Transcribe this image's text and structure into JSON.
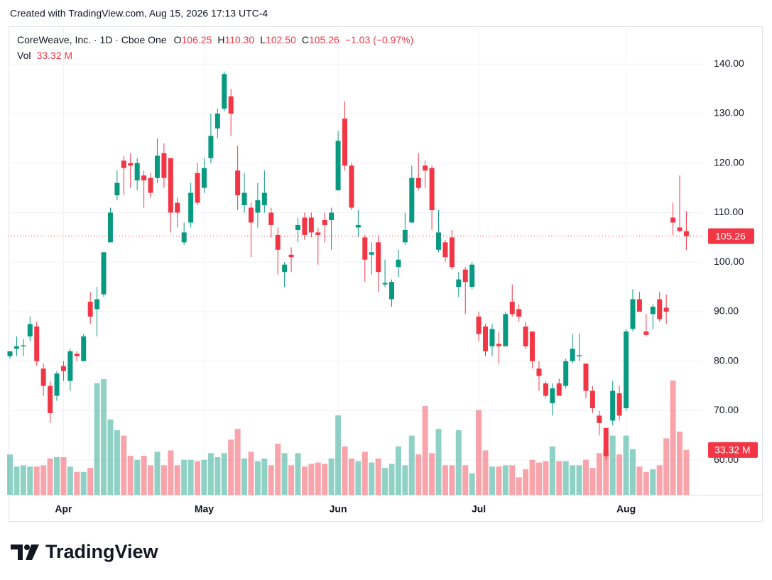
{
  "created": "Created with TradingView.com, Aug 15, 2026 17:13 UTC-4",
  "brand": "TradingView",
  "chart_data": {
    "type": "candlestick",
    "legend": {
      "symbol": "CoreWeave, Inc. · 1D · Cboe One",
      "o_label": "O",
      "o": "106.25",
      "h_label": "H",
      "h": "110.30",
      "l_label": "L",
      "l": "102.50",
      "c_label": "C",
      "c": "105.26",
      "change": "−1.03 (−0.97%)",
      "vol_label": "Vol",
      "vol": "33.32 M"
    },
    "last_price_label": "105.26",
    "last_volume_label": "33.32 M",
    "up_color": "#089981",
    "down_color": "#f23645",
    "grid": true,
    "categories": [
      null,
      null,
      null,
      null,
      null,
      null,
      null,
      null,
      "Apr",
      null,
      null,
      null,
      null,
      null,
      null,
      null,
      null,
      null,
      null,
      null,
      null,
      null,
      null,
      null,
      null,
      null,
      null,
      null,
      null,
      "May",
      null,
      null,
      null,
      null,
      null,
      null,
      null,
      null,
      null,
      null,
      null,
      null,
      null,
      null,
      null,
      null,
      null,
      null,
      null,
      "Jun",
      null,
      null,
      null,
      null,
      null,
      null,
      null,
      null,
      null,
      null,
      null,
      null,
      null,
      null,
      null,
      null,
      null,
      null,
      null,
      null,
      "Jul",
      null,
      null,
      null,
      null,
      null,
      null,
      null,
      null,
      null,
      null,
      null,
      null,
      null,
      null,
      null,
      null,
      null,
      null,
      null,
      null,
      null,
      "Aug",
      null,
      null,
      null,
      null,
      null,
      null,
      null,
      null,
      null
    ],
    "open": [
      81,
      82.5,
      83,
      85,
      87,
      78.5,
      75,
      73,
      79,
      76,
      81.5,
      80,
      92,
      90.5,
      93.5,
      104,
      113.5,
      120.5,
      120,
      116.5,
      117.5,
      117,
      117,
      122,
      121,
      112,
      104,
      108,
      118,
      115,
      121,
      127,
      131,
      133.5,
      118.5,
      111.5,
      111,
      110,
      111.5,
      110,
      105.5,
      98,
      101.5,
      106.5,
      109,
      109,
      106,
      108.5,
      108.5,
      114.5,
      129,
      119.5,
      107,
      105,
      101.5,
      104,
      95.5,
      92.5,
      99,
      104,
      108,
      117,
      119.5,
      119,
      102.5,
      104,
      105,
      95,
      98.5,
      95,
      89,
      87,
      83,
      83.5,
      83,
      92,
      90.5,
      87,
      86,
      78.5,
      75.5,
      71.5,
      75.5,
      75,
      80,
      81,
      79.5,
      74,
      69,
      66.5,
      68,
      73.5,
      70.5,
      86.5,
      92.5,
      86,
      89.5,
      92.5,
      90.8,
      109,
      107,
      106.25
    ],
    "high": [
      82,
      85,
      84.5,
      89,
      88,
      79.5,
      76,
      78,
      80,
      82.5,
      82,
      85.5,
      94,
      95,
      102,
      111,
      118.5,
      121.5,
      122,
      121,
      118.5,
      118,
      125,
      124,
      121,
      113,
      108,
      116,
      120,
      121,
      130,
      131,
      138.5,
      135,
      123.5,
      118,
      112,
      116,
      118.5,
      111,
      107,
      100,
      103,
      109,
      110,
      110,
      107,
      110,
      111,
      126.5,
      132.5,
      120,
      110.5,
      105.5,
      104,
      105.5,
      100.5,
      96.5,
      102.5,
      110,
      119.5,
      122,
      120.5,
      119.5,
      110.5,
      104.5,
      106.5,
      98,
      99,
      100,
      90,
      87.5,
      87.5,
      86,
      90,
      95.5,
      91.5,
      88,
      86,
      80,
      76,
      75.5,
      76.5,
      80.5,
      85.5,
      85.5,
      79.5,
      75,
      70,
      66.5,
      76,
      75,
      86.5,
      94.5,
      94,
      89.5,
      91.5,
      94,
      93.5,
      112,
      117.5,
      110.3
    ],
    "low": [
      80.5,
      81,
      81,
      84,
      79,
      73,
      67.5,
      72,
      76,
      74,
      80,
      80,
      87.5,
      85,
      93,
      104,
      112.5,
      113.5,
      115,
      114.5,
      111,
      113,
      116,
      115,
      106,
      107,
      103.5,
      107,
      111.5,
      114,
      120,
      125,
      130.5,
      125.5,
      110.5,
      110,
      101,
      107,
      110,
      105,
      97.5,
      95,
      98,
      104,
      104.5,
      105,
      99.5,
      104,
      102.5,
      114.5,
      118.5,
      110.5,
      105,
      96,
      97.5,
      94,
      95,
      91,
      97,
      103.5,
      108,
      114.5,
      115,
      106.5,
      102,
      100,
      98.5,
      93,
      89.5,
      94.5,
      84,
      81,
      81,
      79.5,
      83,
      89,
      88,
      82.5,
      78.5,
      74,
      72.5,
      69,
      73,
      74.5,
      79.5,
      80,
      72.5,
      69.5,
      65,
      60,
      67,
      68,
      70,
      86,
      90,
      85,
      86.5,
      88,
      87.5,
      105.5,
      106,
      102.5
    ],
    "close": [
      82,
      83,
      83.2,
      87.5,
      80,
      75,
      69.5,
      77.5,
      78,
      82,
      81,
      85,
      89,
      92.5,
      102,
      110,
      116,
      119,
      119.5,
      120,
      116.5,
      114,
      121.5,
      117,
      110,
      110,
      106,
      114,
      112,
      119,
      125.5,
      130,
      138,
      130,
      113.5,
      114,
      108,
      112.5,
      114,
      107.5,
      102.5,
      99.5,
      101,
      107.5,
      105.5,
      106,
      105.5,
      107.5,
      110,
      124.5,
      119.5,
      111,
      107.5,
      100.5,
      102,
      98,
      95.8,
      96,
      100.5,
      106.5,
      117,
      115,
      118.5,
      110.5,
      106,
      101,
      99,
      96.5,
      96,
      99.5,
      85.5,
      82,
      86.5,
      83,
      89.5,
      89.5,
      89,
      83,
      80,
      77,
      73,
      74.5,
      73,
      80,
      82.5,
      81.2,
      74,
      70.5,
      67.5,
      60.8,
      74,
      69,
      86,
      92.5,
      90,
      85.3,
      91,
      88.5,
      90,
      108,
      106.3,
      105.26
    ],
    "volume": [
      30,
      21,
      22,
      21,
      21,
      22,
      27,
      28,
      28,
      21,
      17,
      17,
      20,
      83,
      86,
      56,
      48,
      44,
      29,
      26,
      29,
      22,
      32,
      22,
      33,
      22,
      26,
      26,
      25,
      26,
      31,
      28,
      31,
      41,
      49,
      27,
      32,
      25,
      27,
      22,
      38,
      31,
      22,
      31,
      21,
      23,
      24,
      23,
      27,
      59,
      36,
      27,
      25,
      32,
      24,
      27,
      20,
      23,
      36,
      22,
      44,
      30,
      66,
      31,
      49,
      22,
      22,
      48,
      22,
      16,
      63,
      33,
      21,
      21,
      22,
      22,
      13,
      19,
      26,
      24,
      25,
      36,
      25,
      25,
      22,
      22,
      26,
      20,
      31,
      33,
      44,
      30,
      44,
      34,
      21,
      17,
      19,
      22,
      42,
      85,
      47,
      33.32
    ],
    "ylim": [
      53,
      147.5
    ],
    "yticks": [
      {
        "value": 60,
        "label": "60.00"
      },
      {
        "value": 70,
        "label": "70.00"
      },
      {
        "value": 80,
        "label": "80.00"
      },
      {
        "value": 90,
        "label": "90.00"
      },
      {
        "value": 100,
        "label": "100.00"
      },
      {
        "value": 110,
        "label": "110.00"
      },
      {
        "value": 120,
        "label": "120.00"
      },
      {
        "value": 130,
        "label": "130.00"
      },
      {
        "value": 140,
        "label": "140.00"
      }
    ]
  }
}
